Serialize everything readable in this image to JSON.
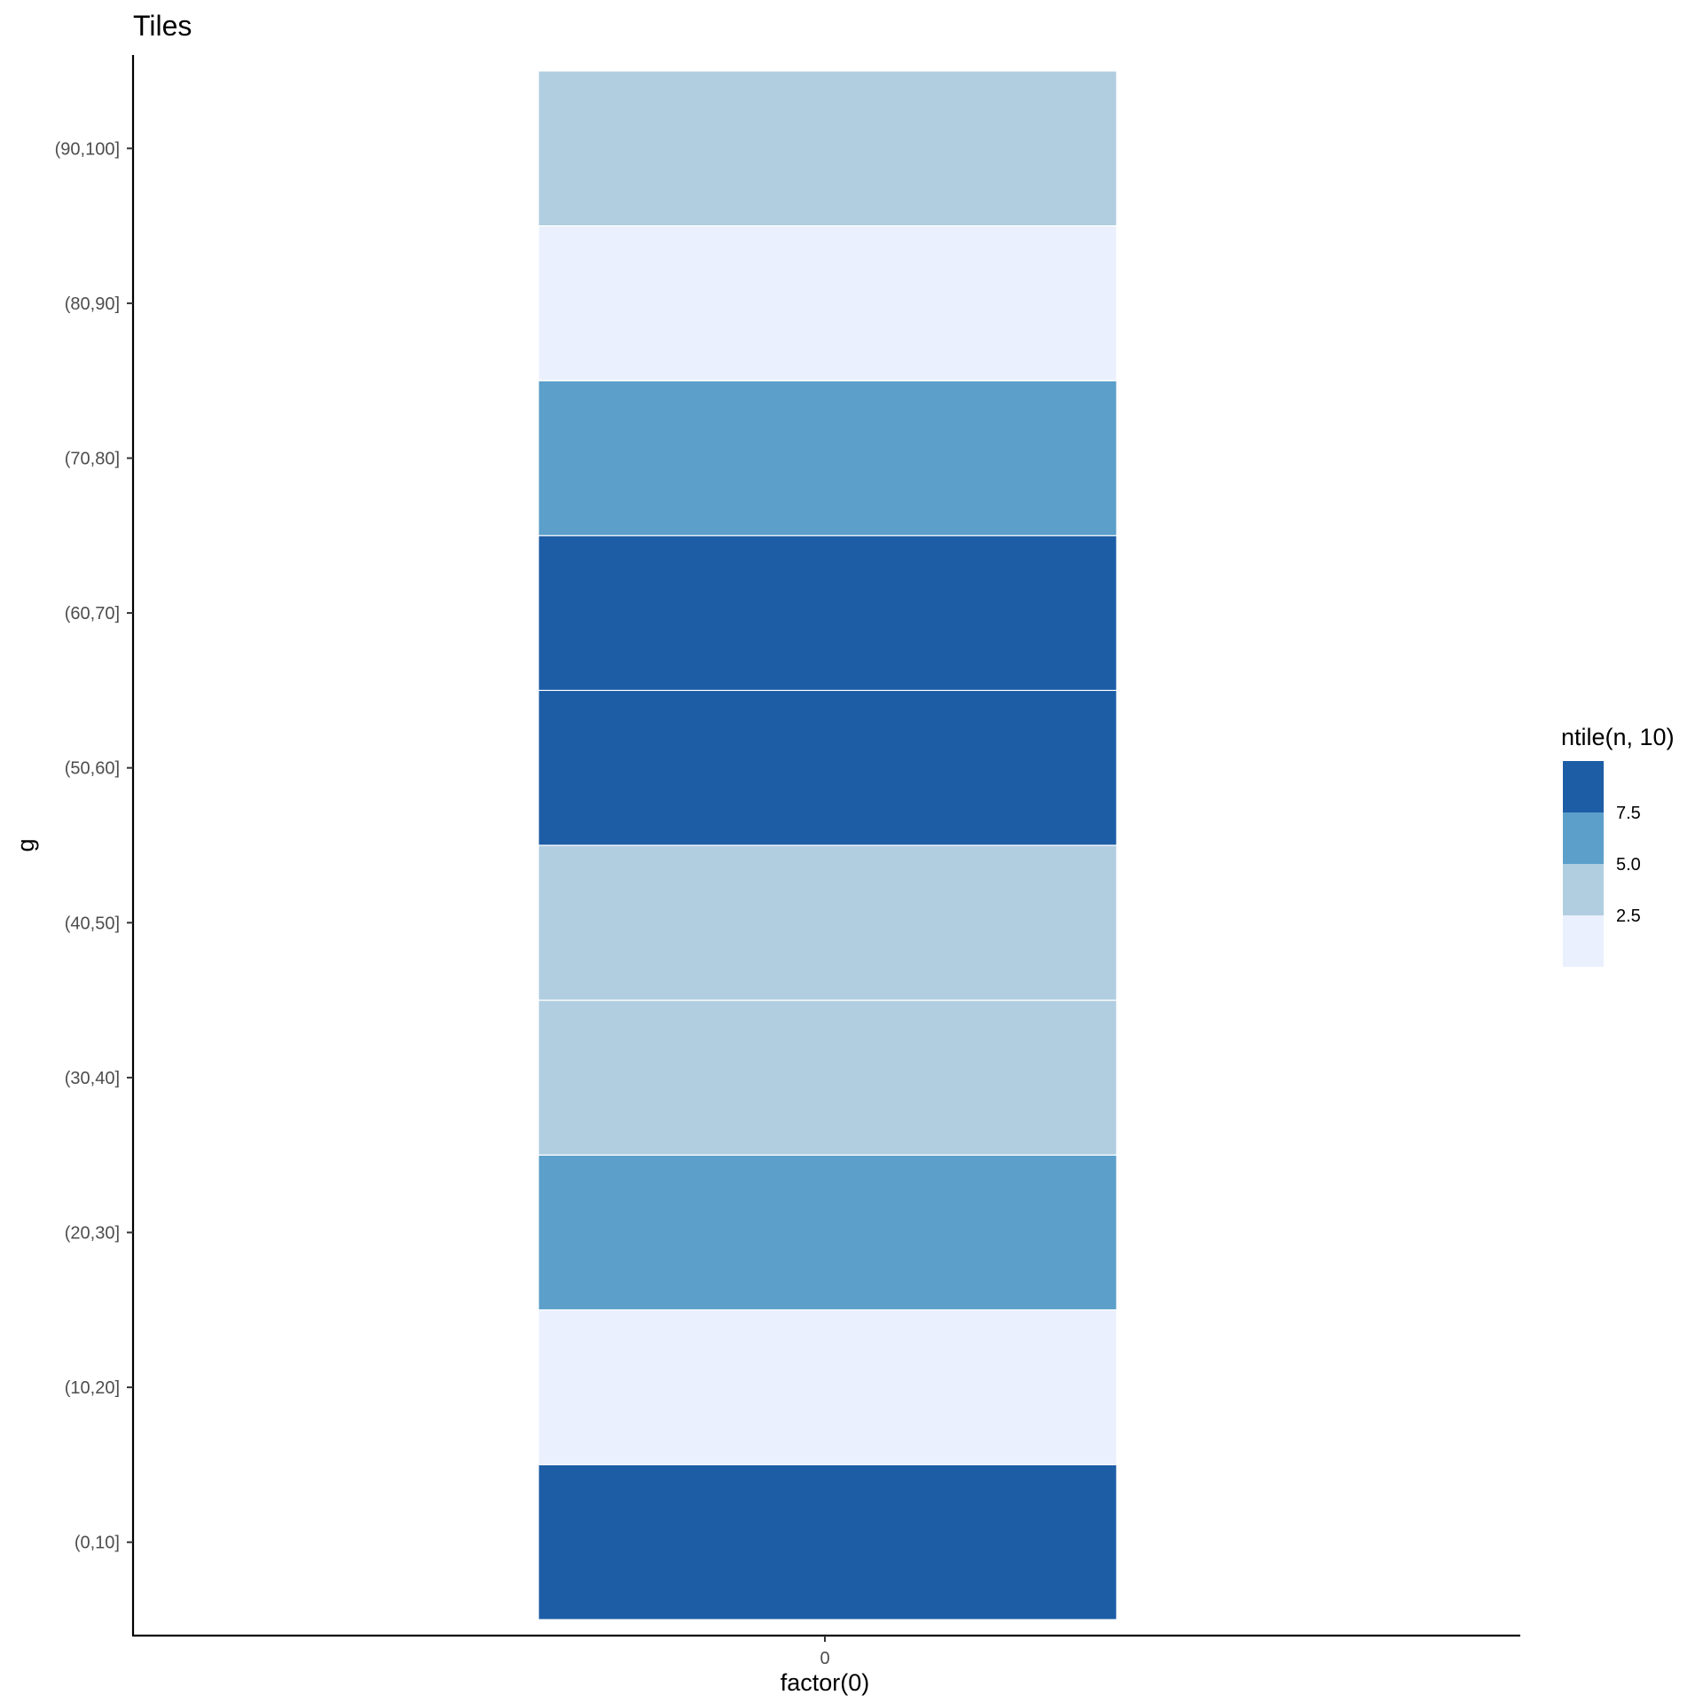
{
  "chart_data": {
    "type": "heatmap",
    "title": "Tiles",
    "xlabel": "factor(0)",
    "ylabel": "g",
    "x_categories": [
      "0"
    ],
    "y_categories": [
      "(0,10]",
      "(10,20]",
      "(20,30]",
      "(30,40]",
      "(40,50]",
      "(50,60]",
      "(60,70]",
      "(70,80]",
      "(80,90]",
      "(90,100]"
    ],
    "values": [
      10,
      1,
      7,
      4,
      4,
      10,
      10,
      7,
      1,
      4
    ],
    "legend": {
      "title": "ntile(n, 10)",
      "placement": "right",
      "labels": [
        "7.5",
        "5.0",
        "2.5"
      ],
      "bins": [
        {
          "min": 1,
          "max": 2.5,
          "color": "#EAF0FD"
        },
        {
          "min": 2.5,
          "max": 5.0,
          "color": "#B1CEE1"
        },
        {
          "min": 5.0,
          "max": 7.5,
          "color": "#5B9FCA"
        },
        {
          "min": 7.5,
          "max": 10,
          "color": "#1D5DA6"
        }
      ]
    },
    "grid": false
  }
}
